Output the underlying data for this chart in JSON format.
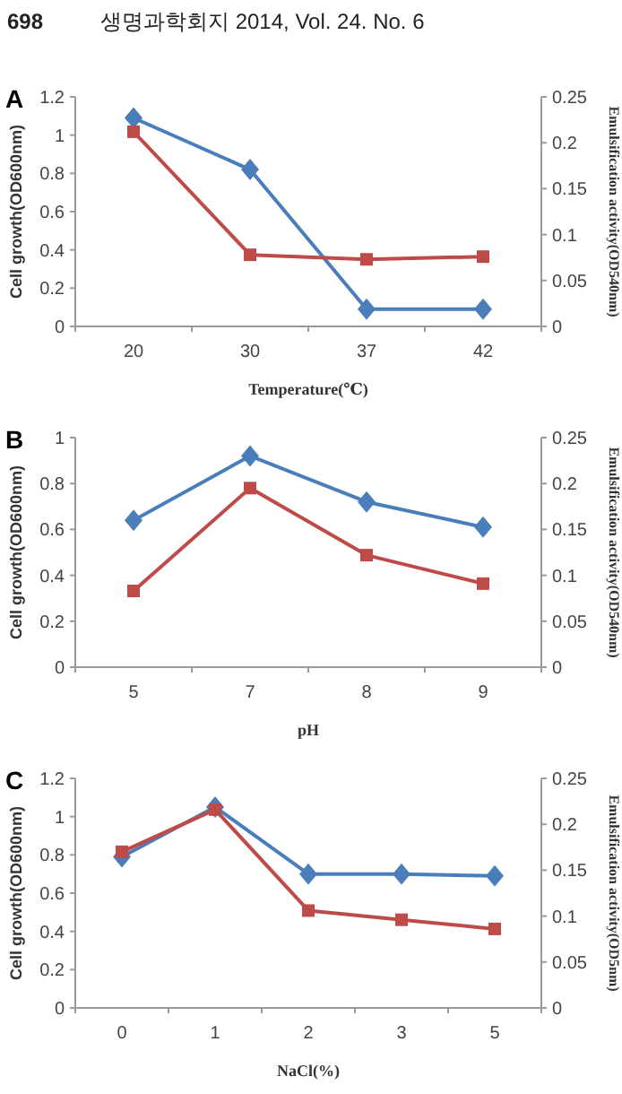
{
  "chart_data": [
    {
      "type": "line",
      "title": "A",
      "annotations": [
        "698",
        "생명과학회지 2014, Vol. 24. No. 6"
      ],
      "categories": [
        "20",
        "30",
        "37",
        "42"
      ],
      "xlabel": "Temperature(℃)",
      "ylabel": "Cell growth(OD600nm)",
      "y2label": "Emulsification activity(OD540nm)",
      "ylim": [
        0,
        1.2
      ],
      "yticks": [
        0,
        0.2,
        0.4,
        0.6,
        0.8,
        1,
        1.2
      ],
      "y2lim": [
        0,
        0.25
      ],
      "y2ticks": [
        0,
        0.05,
        0.1,
        0.15,
        0.2,
        0.25
      ],
      "grid": false,
      "series": [
        {
          "color": "#4a7ebb",
          "marker": "diamond",
          "values": [
            1.09,
            0.82,
            0.09,
            0.09
          ]
        },
        {
          "color": "#be4b48",
          "marker": "square",
          "axis": "y2",
          "values": [
            0.212,
            0.078,
            0.073,
            0.076
          ]
        }
      ]
    },
    {
      "type": "line",
      "title": "B",
      "categories": [
        "5",
        "7",
        "8",
        "9"
      ],
      "xlabel": "pH",
      "ylabel": "Cell growth(OD600nm)",
      "y2label": "Emulsification activity(OD540nm)",
      "ylim": [
        0,
        1
      ],
      "yticks": [
        0,
        0.2,
        0.4,
        0.6,
        0.8,
        1
      ],
      "y2lim": [
        0,
        0.25
      ],
      "y2ticks": [
        0,
        0.05,
        0.1,
        0.15,
        0.2,
        0.25
      ],
      "grid": false,
      "series": [
        {
          "color": "#4a7ebb",
          "marker": "diamond",
          "values": [
            0.64,
            0.92,
            0.72,
            0.61
          ]
        },
        {
          "color": "#be4b48",
          "marker": "square",
          "axis": "y2",
          "values": [
            0.083,
            0.195,
            0.122,
            0.091
          ]
        }
      ]
    },
    {
      "type": "line",
      "title": "C",
      "categories": [
        "0",
        "1",
        "2",
        "3",
        "5"
      ],
      "xlabel": "NaCl(%)",
      "ylabel": "Cell growth(OD600nm)",
      "y2label": "Emulsification activity(OD5nm)",
      "ylim": [
        0,
        1.2
      ],
      "yticks": [
        0,
        0.2,
        0.4,
        0.6,
        0.8,
        1,
        1.2
      ],
      "y2lim": [
        0,
        0.25
      ],
      "y2ticks": [
        0,
        0.05,
        0.1,
        0.15,
        0.2,
        0.25
      ],
      "grid": false,
      "series": [
        {
          "color": "#4a7ebb",
          "marker": "diamond",
          "values": [
            0.79,
            1.05,
            0.7,
            0.7,
            0.69
          ]
        },
        {
          "color": "#be4b48",
          "marker": "square",
          "axis": "y2",
          "values": [
            0.17,
            0.216,
            0.106,
            0.096,
            0.086
          ]
        }
      ]
    }
  ]
}
